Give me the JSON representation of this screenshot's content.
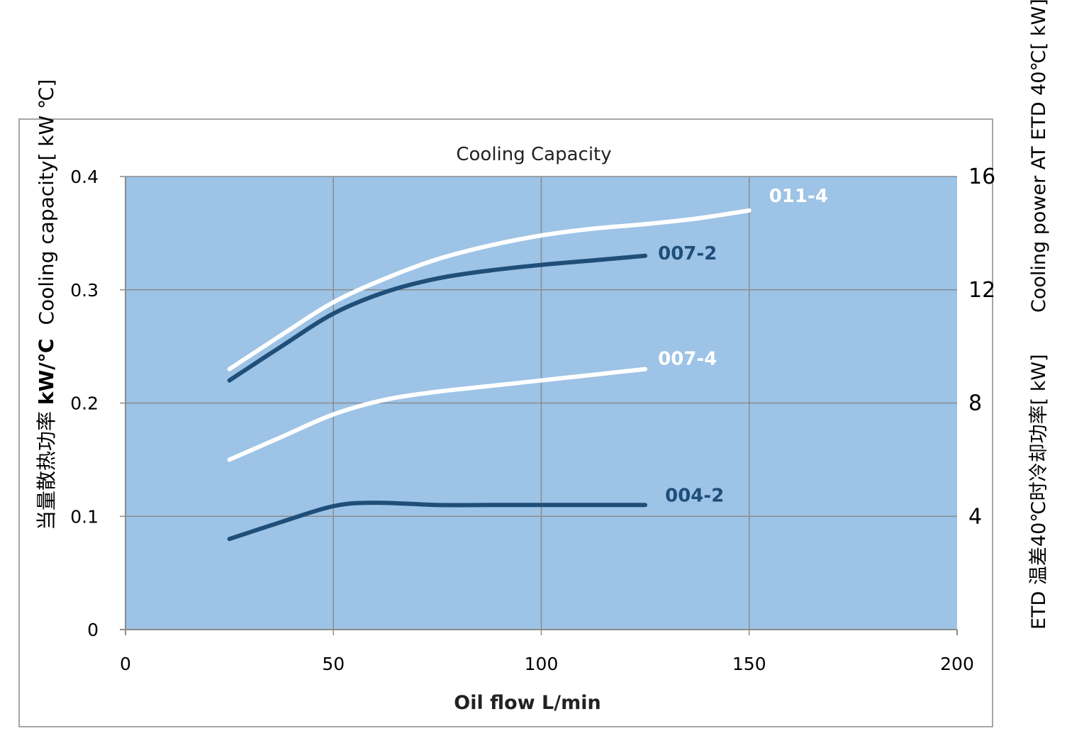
{
  "chart_data": {
    "type": "line",
    "title": "Cooling Capacity",
    "xlabel": "Oil flow L/min",
    "ylabel": "当量散热功率kW/℃ Cooling capacity[ kW  ℃]",
    "ylabel_parts": {
      "cn": "当量散热功率",
      "unit": "kW/℃",
      "en": "Cooling capacity[ kW  ℃]"
    },
    "y2label": {
      "top": "Cooling  power AT  ETD 40℃[ kW]",
      "bottom": "ETD 温差40℃时冷却功率[ kW]"
    },
    "xlim": [
      0,
      200
    ],
    "ylim": [
      0,
      0.4
    ],
    "x_ticks": [
      "0",
      "50",
      "100",
      "150",
      "200"
    ],
    "y_ticks": [
      "0",
      "0.1",
      "0.2",
      "0.3",
      "0.4"
    ],
    "y2_ticks": [
      {
        "label": "4",
        "value": 0.1
      },
      {
        "label": "8",
        "value": 0.2
      },
      {
        "label": "12",
        "value": 0.3
      },
      {
        "label": "16",
        "value": 0.4
      }
    ],
    "grid": true,
    "series": [
      {
        "name": "011-4",
        "color": "#ffffff",
        "points": [
          [
            25,
            0.23
          ],
          [
            37.5,
            0.26
          ],
          [
            50,
            0.289
          ],
          [
            62.5,
            0.31
          ],
          [
            75,
            0.327
          ],
          [
            87.5,
            0.339
          ],
          [
            100,
            0.348
          ],
          [
            112.5,
            0.354
          ],
          [
            125,
            0.358
          ],
          [
            137.5,
            0.363
          ],
          [
            150,
            0.37
          ]
        ]
      },
      {
        "name": "007-2",
        "color": "#1f4e79",
        "points": [
          [
            25,
            0.22
          ],
          [
            37.5,
            0.25
          ],
          [
            50,
            0.279
          ],
          [
            62.5,
            0.298
          ],
          [
            75,
            0.31
          ],
          [
            87.5,
            0.317
          ],
          [
            100,
            0.322
          ],
          [
            112.5,
            0.326
          ],
          [
            125,
            0.33
          ]
        ]
      },
      {
        "name": "007-4",
        "color": "#ffffff",
        "points": [
          [
            25,
            0.15
          ],
          [
            37.5,
            0.17
          ],
          [
            50,
            0.19
          ],
          [
            62.5,
            0.203
          ],
          [
            75,
            0.21
          ],
          [
            87.5,
            0.215
          ],
          [
            100,
            0.22
          ],
          [
            112.5,
            0.225
          ],
          [
            125,
            0.23
          ]
        ]
      },
      {
        "name": "004-2",
        "color": "#1f4e79",
        "points": [
          [
            25,
            0.08
          ],
          [
            37.5,
            0.095
          ],
          [
            50,
            0.109
          ],
          [
            60,
            0.112
          ],
          [
            75,
            0.11
          ],
          [
            87.5,
            0.11
          ],
          [
            100,
            0.11
          ],
          [
            112.5,
            0.11
          ],
          [
            125,
            0.11
          ]
        ]
      }
    ]
  }
}
